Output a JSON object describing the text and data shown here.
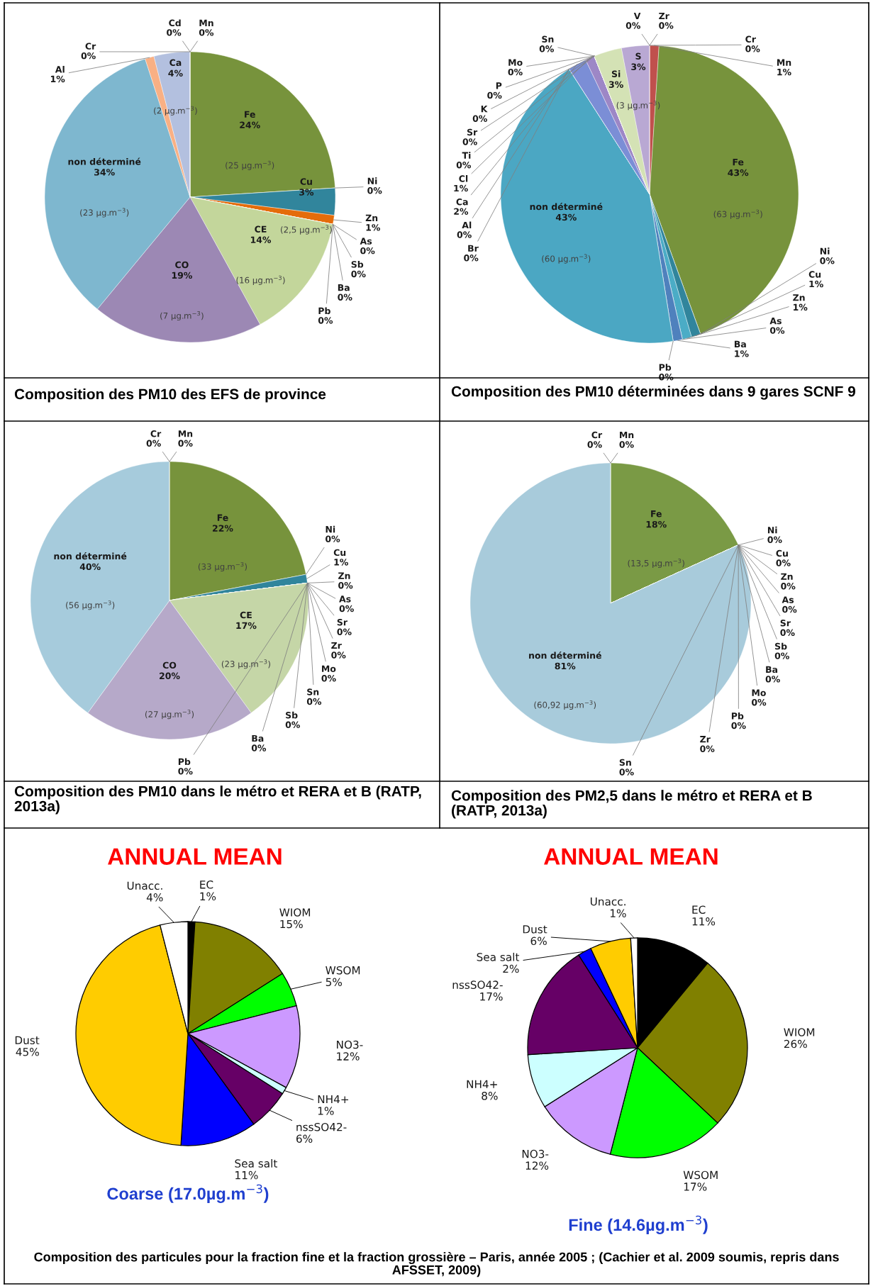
{
  "chart_data": [
    {
      "type": "pie",
      "title": "Composition des PM10 des EFS de province",
      "categories": [
        "Mn",
        "Fe",
        "Ni",
        "Cu",
        "Zn",
        "As",
        "Sb",
        "Ba",
        "Pb",
        "CE",
        "CO",
        "non déterminé",
        "Al",
        "Ca",
        "Cd",
        "Cr"
      ],
      "values": [
        0,
        24,
        0,
        3,
        1,
        0,
        0,
        0,
        0,
        14,
        19,
        34,
        1,
        4,
        0,
        0
      ],
      "value_labels": [
        "0%",
        "24%",
        "0%",
        "3%",
        "1%",
        "0%",
        "0%",
        "0%",
        "0%",
        "14%",
        "19%",
        "34%",
        "1%",
        "4%",
        "0%",
        "0%"
      ],
      "colors": [
        "#953735",
        "#77933c",
        "#4f6228",
        "#31859c",
        "#e46c0a",
        "#b9cde5",
        "#ccc1da",
        "#d99694",
        "#c4bd97",
        "#c3d69b",
        "#9c88b4",
        "#7eb7cf",
        "#f9b084",
        "#b3c0df",
        "#9bbb59",
        "#8064a2"
      ],
      "data_labels": true,
      "annotations": [
        {
          "text": "(2 µg.m$^{−3}$)",
          "x": "Ca"
        },
        {
          "text": "(25 µg.m$^{−3}$)",
          "x": "Fe"
        },
        {
          "text": "(2,5 µg.m$^{−3}$)",
          "x": "Cu"
        },
        {
          "text": "(16 µg.m$^{−3}$)",
          "x": "CE"
        },
        {
          "text": "(7 µg.m$^{−3}$)",
          "x": "CO"
        },
        {
          "text": "(23 µg.m$^{−3}$)",
          "x": "non déterminé"
        }
      ]
    },
    {
      "type": "pie",
      "title": "Composition des PM10 déterminées dans 9 gares SCNF 9",
      "categories": [
        "Zr",
        "Cr",
        "Mn",
        "Fe",
        "Ni",
        "Cu",
        "Zn",
        "As",
        "Ba",
        "Pb",
        "non déterminé",
        "Al",
        "Br",
        "Ca",
        "Cl",
        "Sn",
        "Mo",
        "P",
        "K",
        "Sr",
        "Ti",
        "Si",
        "S",
        "V"
      ],
      "values": [
        0,
        0,
        1,
        43,
        0,
        1,
        1,
        0,
        1,
        0,
        43,
        0,
        0,
        2,
        1,
        0,
        0,
        0,
        0,
        0,
        0,
        3,
        3,
        0
      ],
      "value_labels": [
        "0%",
        "0%",
        "1%",
        "43%",
        "0%",
        "1%",
        "1%",
        "0%",
        "1%",
        "0%",
        "43%",
        "0%",
        "0%",
        "2%",
        "1%",
        "0%",
        "0%",
        "0%",
        "0%",
        "0%",
        "0%",
        "3%",
        "3%",
        "0%"
      ],
      "colors": [
        "#b9cde5",
        "#1f497d",
        "#c0504d",
        "#77933c",
        "#8064a2",
        "#31859c",
        "#4bacc6",
        "#f79646",
        "#4f81bd",
        "#c0504d",
        "#4ba7c3",
        "#f79646",
        "#9bbb59",
        "#7b8ed6",
        "#9d87c6",
        "#93cddd",
        "#b7dee8",
        "#fac090",
        "#e6b9b8",
        "#d7e4bd",
        "#ccc1da",
        "#d4e2b5",
        "#b9a8d3",
        "#dbe5f1"
      ],
      "data_labels": true,
      "annotations": [
        {
          "text": "(3 µg.m$^{−3}$)",
          "x": "S"
        },
        {
          "text": "(63 µg.m$^{−3}$)",
          "x": "Fe"
        },
        {
          "text": "(60 µg.m$^{−3}$)",
          "x": "non déterminé"
        }
      ]
    },
    {
      "type": "pie",
      "title": "Composition des PM10 dans le métro et RERA et B (RATP, 2013a)",
      "categories": [
        "Mn",
        "Fe",
        "Ni",
        "Cu",
        "Zn",
        "As",
        "Sr",
        "Zr",
        "Mo",
        "Sn",
        "Sb",
        "Ba",
        "Pb",
        "CE",
        "CO",
        "non déterminé",
        "Cr"
      ],
      "values": [
        0,
        22,
        0,
        1,
        0,
        0,
        0,
        0,
        0,
        0,
        0,
        0,
        0,
        17,
        20,
        40,
        0
      ],
      "value_labels": [
        "0%",
        "22%",
        "0%",
        "1%",
        "0%",
        "0%",
        "0%",
        "0%",
        "0%",
        "0%",
        "0%",
        "0%",
        "0%",
        "17%",
        "20%",
        "40%",
        "0%"
      ],
      "colors": [
        "#953735",
        "#77933c",
        "#4bacc6",
        "#31859c",
        "#f79646",
        "#e6b9b8",
        "#d99694",
        "#b9cde5",
        "#ccc1da",
        "#c4bd97",
        "#b7dee8",
        "#fac090",
        "#d7e4bd",
        "#c5d6a7",
        "#b6a9c9",
        "#a6cbdc",
        "#8064a2"
      ],
      "data_labels": true,
      "annotations": [
        {
          "text": "(33 µg.m$^{−3}$)",
          "x": "Fe"
        },
        {
          "text": "(23 µg.m$^{−3}$)",
          "x": "CE"
        },
        {
          "text": "(27 µg.m$^{−3}$)",
          "x": "CO"
        },
        {
          "text": "(56 µg.m$^{−3}$)",
          "x": "non déterminé"
        }
      ]
    },
    {
      "type": "pie",
      "title": "Composition des PM2,5 dans le métro et RERA et B (RATP, 2013a)",
      "categories": [
        "Mn",
        "Fe",
        "Ni",
        "Cu",
        "Zn",
        "As",
        "Sr",
        "Sb",
        "Ba",
        "Mo",
        "Pb",
        "Zr",
        "Sn",
        "non déterminé",
        "Cr"
      ],
      "values": [
        0,
        18,
        0,
        0,
        0,
        0,
        0,
        0,
        0,
        0,
        0,
        0,
        0,
        81,
        0
      ],
      "value_labels": [
        "0%",
        "18%",
        "0%",
        "0%",
        "0%",
        "0%",
        "0%",
        "0%",
        "0%",
        "0%",
        "0%",
        "0%",
        "0%",
        "81%",
        "0%"
      ],
      "colors": [
        "#953735",
        "#7a9a45",
        "#31859c",
        "#4bacc6",
        "#f79646",
        "#e6b9b8",
        "#d99694",
        "#b9cde5",
        "#ccc1da",
        "#c4bd97",
        "#b7dee8",
        "#fac090",
        "#d7e4bd",
        "#a8cbdb",
        "#8064a2"
      ],
      "data_labels": true,
      "annotations": [
        {
          "text": "(13,5 µg.m$^{−3}$)",
          "x": "Fe"
        },
        {
          "text": "(60,92 µg.m$^{−3}$)",
          "x": "non déterminé"
        }
      ]
    },
    {
      "type": "pie",
      "title": "ANNUAL MEAN",
      "subtitle": "Coarse (17.0µg.m$^{−3}$)",
      "categories": [
        "EC",
        "WIOM",
        "WSOM",
        "NO3-",
        "NH4+",
        "nssSO42-",
        "Sea salt",
        "Dust",
        "Unacc."
      ],
      "values": [
        1,
        15,
        5,
        12,
        1,
        6,
        11,
        45,
        4
      ],
      "value_labels": [
        "1%",
        "15%",
        "5%",
        "12%",
        "1%",
        "6%",
        "11%",
        "45%",
        "4%"
      ],
      "colors": [
        "#000000",
        "#808000",
        "#00ff00",
        "#cc99ff",
        "#ccffff",
        "#660066",
        "#0000ff",
        "#ffcc00",
        "#ffffff"
      ],
      "data_labels": true,
      "annotations": [
        "Composition des particules pour la fraction fine et la fraction grossière – Paris, année 2005 ; (Cachier et al. 2009 soumis, repris dans AFSSET, 2009)"
      ]
    },
    {
      "type": "pie",
      "title": "ANNUAL MEAN",
      "subtitle": "Fine (14.6µg.m$^{−3}$)",
      "categories": [
        "EC",
        "WIOM",
        "WSOM",
        "NO3-",
        "NH4+",
        "nssSO42-",
        "Sea salt",
        "Dust",
        "Unacc."
      ],
      "values": [
        11,
        26,
        17,
        12,
        8,
        17,
        2,
        6,
        1
      ],
      "value_labels": [
        "11%",
        "26%",
        "17%",
        "12%",
        "8%",
        "17%",
        "2%",
        "6%",
        "1%"
      ],
      "colors": [
        "#000000",
        "#808000",
        "#00ff00",
        "#cc99ff",
        "#ccffff",
        "#660066",
        "#0000ff",
        "#ffcc00",
        "#ffffff"
      ],
      "data_labels": true
    }
  ]
}
